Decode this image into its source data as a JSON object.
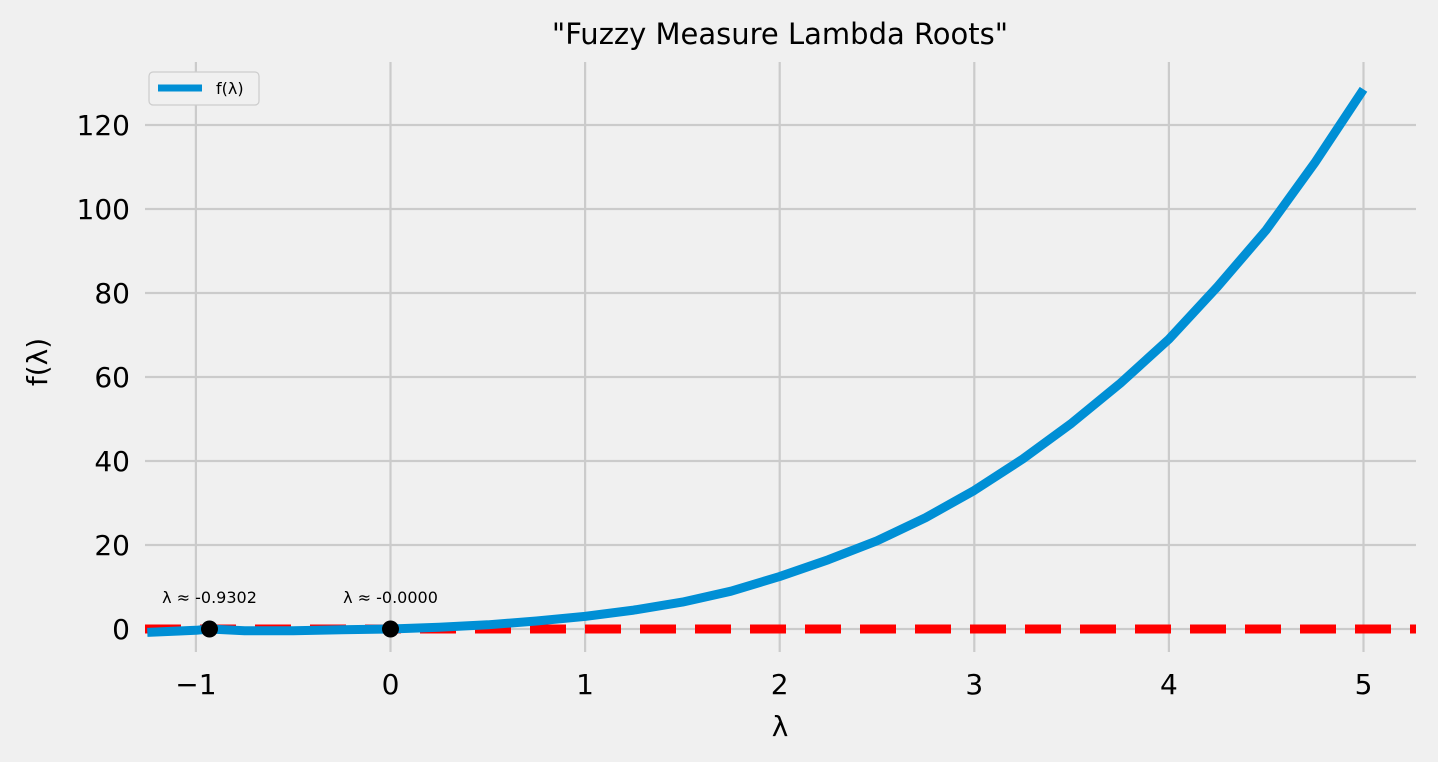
{
  "chart_data": {
    "type": "line",
    "title": "\"Fuzzy Measure Lambda Roots\"",
    "xlabel": "λ",
    "ylabel": "f(λ)",
    "xlim": [
      -1.25,
      5.25
    ],
    "ylim": [
      -6,
      135
    ],
    "xticks": [
      -1,
      0,
      1,
      2,
      3,
      4,
      5
    ],
    "xtick_labels": [
      "−1",
      "0",
      "1",
      "2",
      "3",
      "4",
      "5"
    ],
    "yticks": [
      0,
      20,
      40,
      60,
      80,
      100,
      120
    ],
    "ytick_labels": [
      "0",
      "20",
      "40",
      "60",
      "80",
      "100",
      "120"
    ],
    "grid": true,
    "legend_position": "upper-left",
    "series": [
      {
        "name": "f(λ)",
        "color": "#008fd5",
        "x": [
          -1.25,
          -1.0,
          -0.93,
          -0.75,
          -0.5,
          -0.25,
          0.0,
          0.25,
          0.5,
          0.75,
          1.0,
          1.25,
          1.5,
          1.75,
          2.0,
          2.25,
          2.5,
          2.75,
          3.0,
          3.25,
          3.5,
          3.75,
          4.0,
          4.25,
          4.5,
          4.75,
          5.0
        ],
        "y": [
          -0.8,
          -0.3,
          0.0,
          -0.4,
          -0.4,
          -0.2,
          0.0,
          0.4,
          1.0,
          1.9,
          3.0,
          4.5,
          6.4,
          9.0,
          12.5,
          16.5,
          21.0,
          26.5,
          33.0,
          40.5,
          49.0,
          58.5,
          69.0,
          81.5,
          95.0,
          111.0,
          128.5
        ]
      }
    ],
    "reference_line": {
      "y": 0,
      "color": "#ff0000",
      "style": "dashed"
    },
    "roots": [
      {
        "x": -0.9302,
        "y": 0,
        "label": "λ ≈ -0.9302"
      },
      {
        "x": -0.0,
        "y": 0,
        "label": "λ ≈ -0.0000"
      }
    ]
  }
}
